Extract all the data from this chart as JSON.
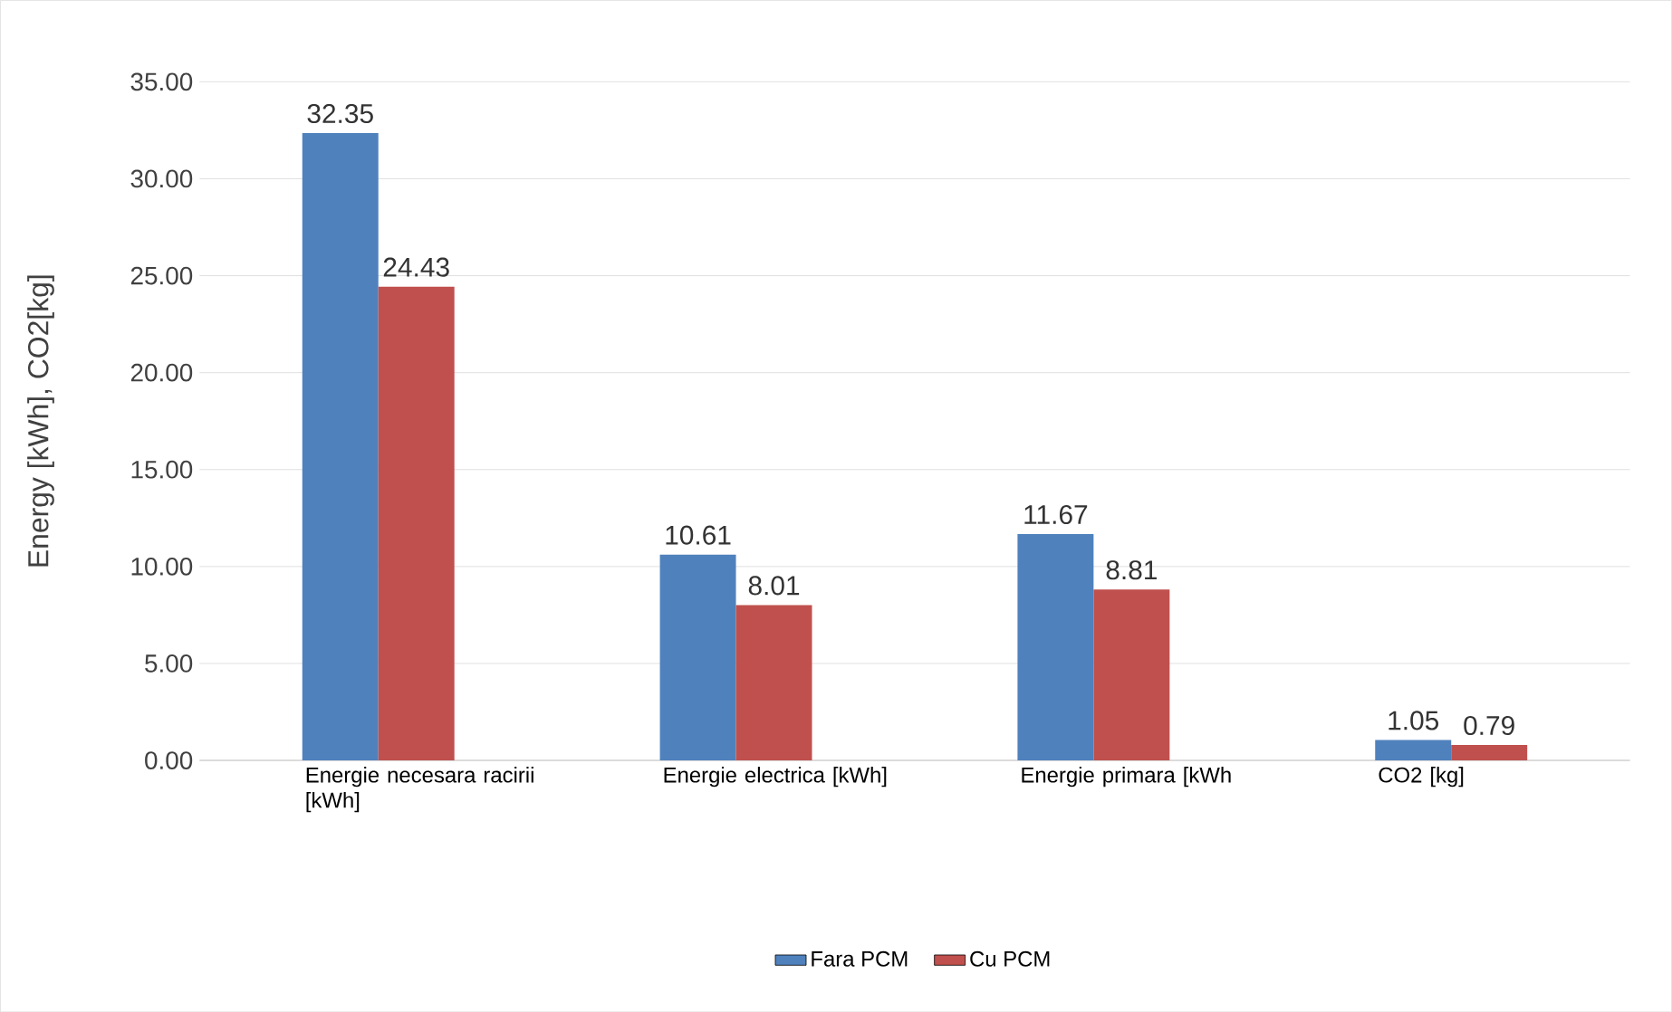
{
  "chart_data": {
    "type": "bar",
    "categories": [
      "Energie necesara racirii [kWh]",
      "Energie electrica [kWh]",
      "Energie primara [kWh",
      "CO2 [kg]"
    ],
    "ylabel": "Energy [kWh], CO2[kg]",
    "series": [
      {
        "name": "Fara PCM",
        "color": "#4f81bd",
        "values": [
          32.35,
          10.61,
          11.67,
          1.05
        ],
        "value_labels": [
          "32.35",
          "10.61",
          "11.67",
          "1.05"
        ]
      },
      {
        "name": "Cu PCM",
        "color": "#c0504d",
        "values": [
          24.43,
          8.01,
          8.81,
          0.79
        ],
        "value_labels": [
          "24.43",
          "8.01",
          "8.81",
          "0.79"
        ]
      }
    ],
    "ylim": [
      0,
      35
    ],
    "yticks": [
      {
        "value": 0,
        "label": "0.00"
      },
      {
        "value": 5,
        "label": "5.00"
      },
      {
        "value": 10,
        "label": "10.00"
      },
      {
        "value": 15,
        "label": "15.00"
      },
      {
        "value": 20,
        "label": "20.00"
      },
      {
        "value": 25,
        "label": "25.00"
      },
      {
        "value": 30,
        "label": "30.00"
      },
      {
        "value": 35,
        "label": "35.00"
      }
    ],
    "grid": "y",
    "legend": "bottom"
  }
}
